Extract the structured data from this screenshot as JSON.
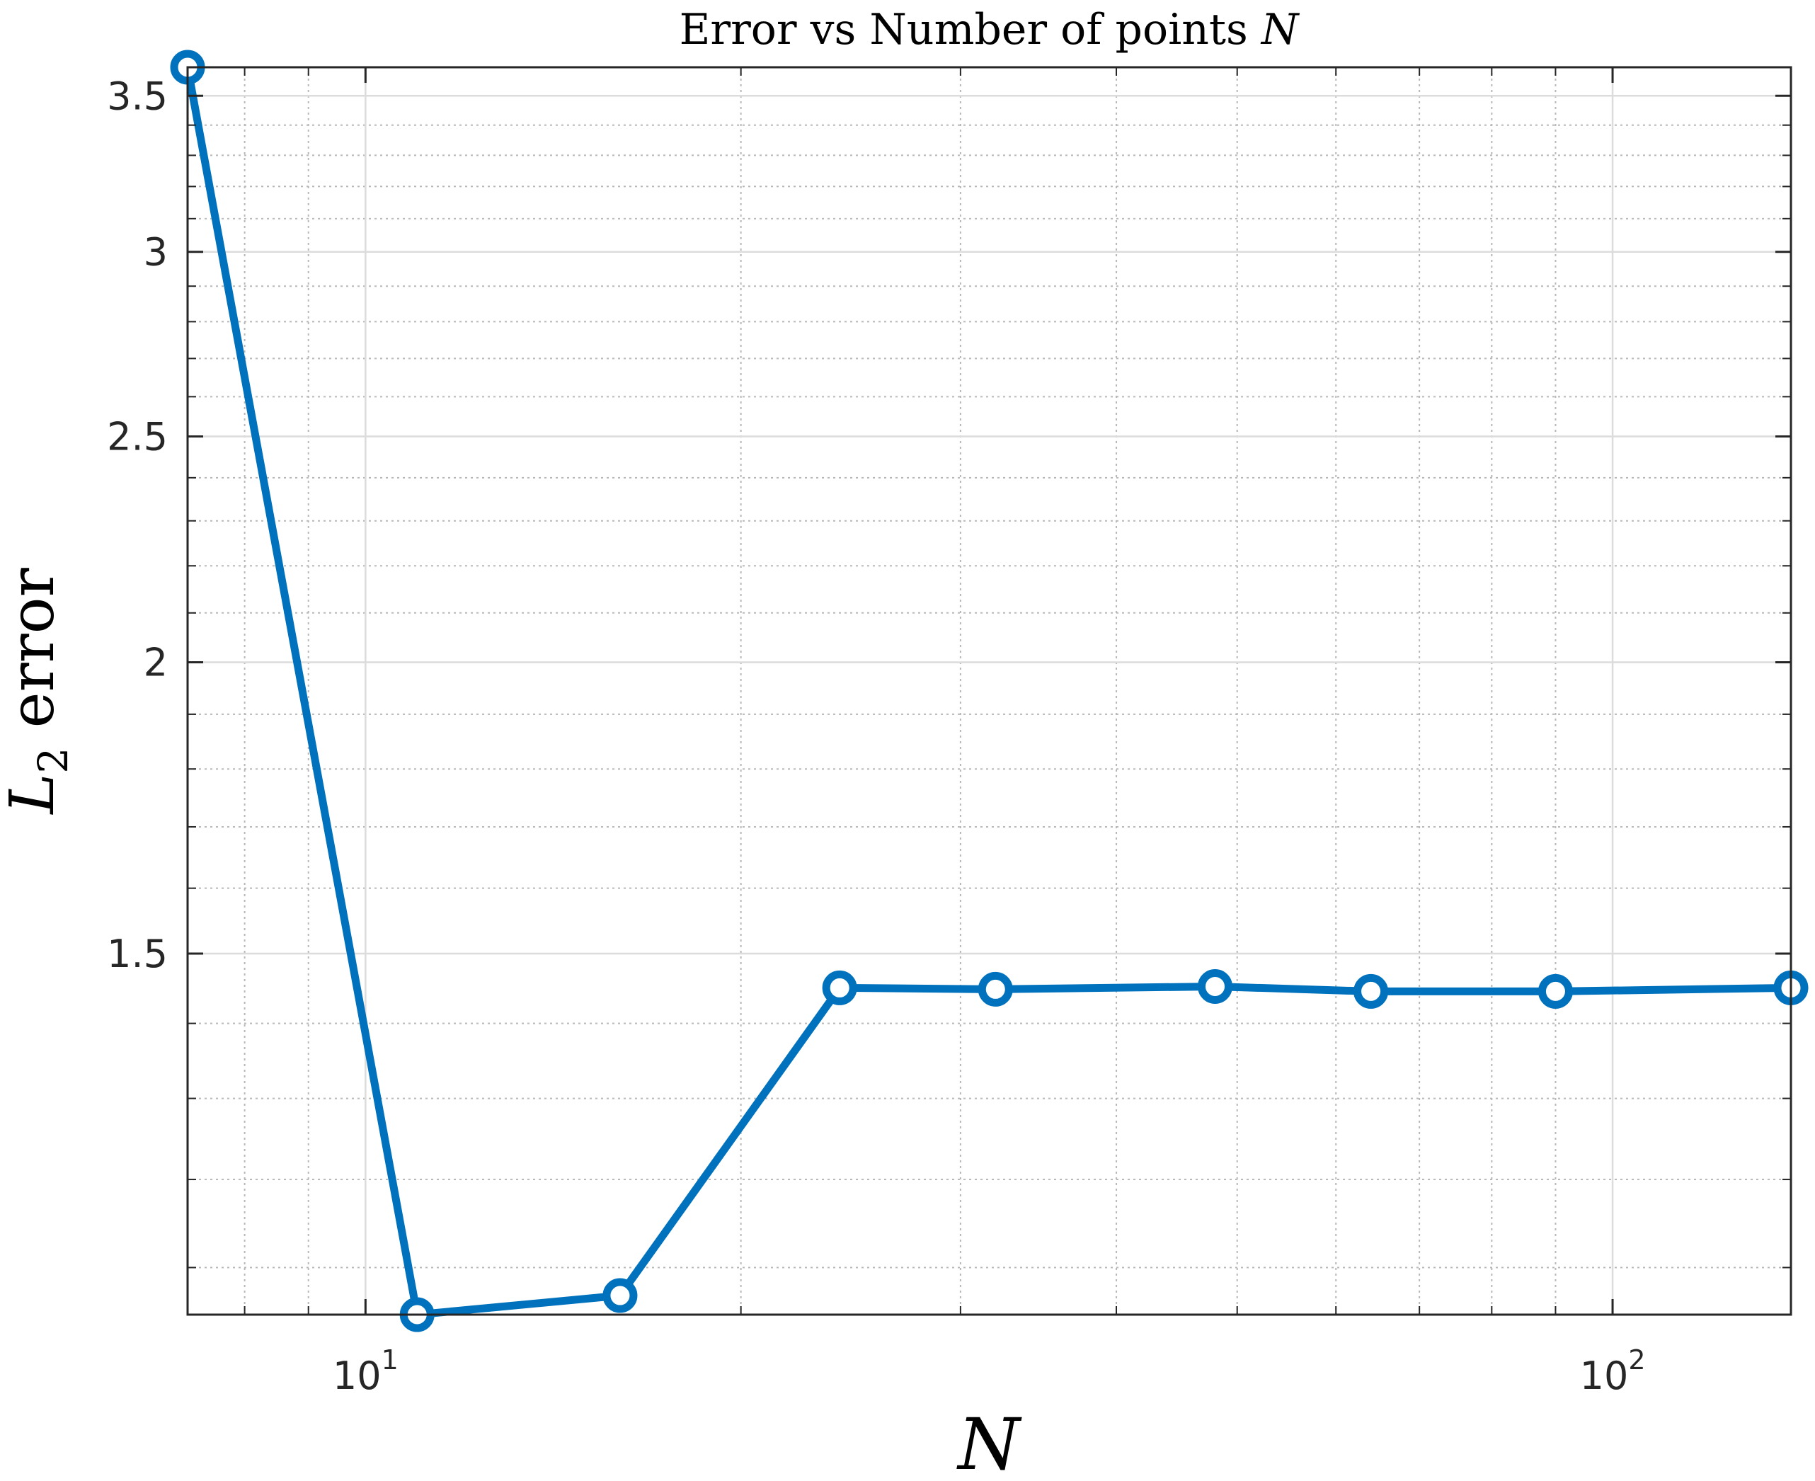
{
  "chart_data": {
    "type": "line",
    "title": "Error vs Number of points ",
    "title_var": "N",
    "xlabel": "N",
    "ylabel_var": "L",
    "ylabel_sub": "2",
    "ylabel_rest": " error",
    "xscale": "log",
    "yscale": "log",
    "xlim": [
      7.2,
      139
    ],
    "ylim": [
      1.05,
      3.6
    ],
    "grid": true,
    "minor_grid": true,
    "xticks": [
      {
        "value": 10,
        "base": "10",
        "exp": "1"
      },
      {
        "value": 100,
        "base": "10",
        "exp": "2"
      }
    ],
    "yticks": [
      {
        "value": 1.5,
        "label": "1.5"
      },
      {
        "value": 2,
        "label": "2"
      },
      {
        "value": 2.5,
        "label": "2.5"
      },
      {
        "value": 3,
        "label": "3"
      },
      {
        "value": 3.5,
        "label": "3.5"
      }
    ],
    "series": [
      {
        "color": "#0072BD",
        "marker": "circle",
        "x": [
          7.2,
          11,
          16,
          24,
          32,
          48,
          64,
          90,
          139
        ],
        "y": [
          3.6,
          1.05,
          1.07,
          1.45,
          1.448,
          1.452,
          1.445,
          1.445,
          1.45
        ]
      }
    ]
  }
}
